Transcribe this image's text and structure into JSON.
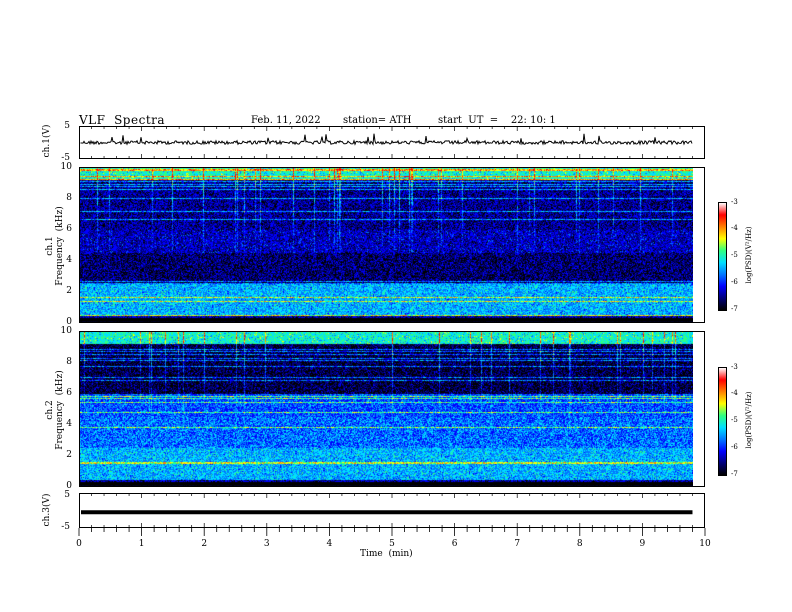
{
  "header": {
    "title": "VLF  Spectra",
    "date": "Feb. 11, 2022",
    "station": "station= ATH",
    "start": "start  UT  =    22: 10: 1"
  },
  "chart_data": [
    {
      "type": "line",
      "panel": "ch1-waveform",
      "ylabel": "ch.1(V)",
      "yticks": [
        "5",
        "-5"
      ],
      "ylim": [
        -5,
        5
      ],
      "baseline_value": 0,
      "color": "#000000"
    },
    {
      "type": "heatmap",
      "panel": "ch1-spectrogram",
      "ylabel": "ch.1\nFrequency  (kHz)",
      "yticks": [
        "10",
        "8",
        "6",
        "4",
        "2",
        "0"
      ],
      "ylim": [
        0,
        10
      ],
      "colorbar": {
        "label": "log(PSD)(V²/Hz)",
        "ticks": [
          "-3",
          "-4",
          "-5",
          "-6",
          "-7"
        ],
        "range": [
          -7,
          -3
        ]
      }
    },
    {
      "type": "heatmap",
      "panel": "ch2-spectrogram",
      "ylabel": "ch.2\nFrequency  (kHz)",
      "yticks": [
        "10",
        "8",
        "6",
        "4",
        "2",
        "0"
      ],
      "ylim": [
        0,
        10
      ],
      "colorbar": {
        "label": "log(PSD)(V²/Hz)",
        "ticks": [
          "-3",
          "-4",
          "-5",
          "-6",
          "-7"
        ],
        "range": [
          -7,
          -3
        ]
      }
    },
    {
      "type": "line",
      "panel": "ch3-waveform",
      "ylabel": "ch.3(V)",
      "yticks": [
        "5",
        "-5"
      ],
      "ylim": [
        -5,
        5
      ],
      "baseline_value": -0.5,
      "color": "#000000"
    }
  ],
  "xaxis": {
    "label": "Time  (min)",
    "ticks": [
      "0",
      "1",
      "2",
      "3",
      "4",
      "5",
      "6",
      "7",
      "8",
      "9",
      "10"
    ],
    "range": [
      0,
      10
    ],
    "data_end": 9.8
  },
  "colormap": [
    "#000000",
    "#00007a",
    "#0000ff",
    "#0078ff",
    "#00e0ff",
    "#30ff80",
    "#ffff00",
    "#ff8000",
    "#ff0000",
    "#ffffff"
  ]
}
